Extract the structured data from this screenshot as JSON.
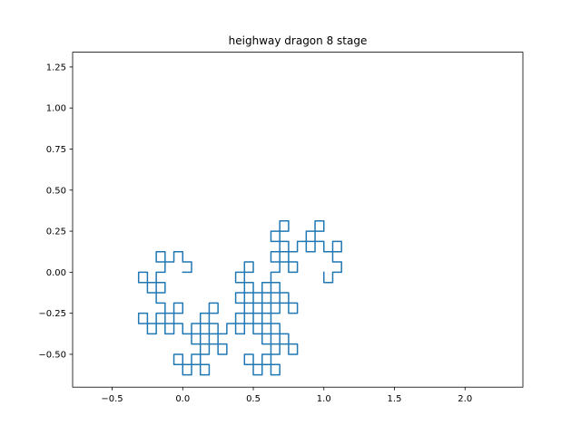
{
  "chart_data": {
    "type": "line",
    "title": "heighway dragon 8 stage",
    "xlabel": "",
    "ylabel": "",
    "xlim": [
      -0.78,
      2.41
    ],
    "ylim": [
      -0.7,
      1.34
    ],
    "xticks": [
      -0.5,
      0.0,
      0.5,
      1.0,
      1.5,
      2.0
    ],
    "xtick_labels": [
      "−0.5",
      "0.0",
      "0.5",
      "1.0",
      "1.5",
      "2.0"
    ],
    "yticks": [
      -0.5,
      -0.25,
      0.0,
      0.25,
      0.5,
      0.75,
      1.0,
      1.25
    ],
    "ytick_labels": [
      "−0.50",
      "−0.25",
      "0.00",
      "0.25",
      "0.50",
      "0.75",
      "1.00",
      "1.25"
    ],
    "grid": false,
    "series": [
      {
        "color": "#1f77b4",
        "generator": "heighway dragon curve, 8 folds, unit start segment (0,0)→(1,0), fold angle 45°",
        "iterations": 8
      }
    ]
  }
}
